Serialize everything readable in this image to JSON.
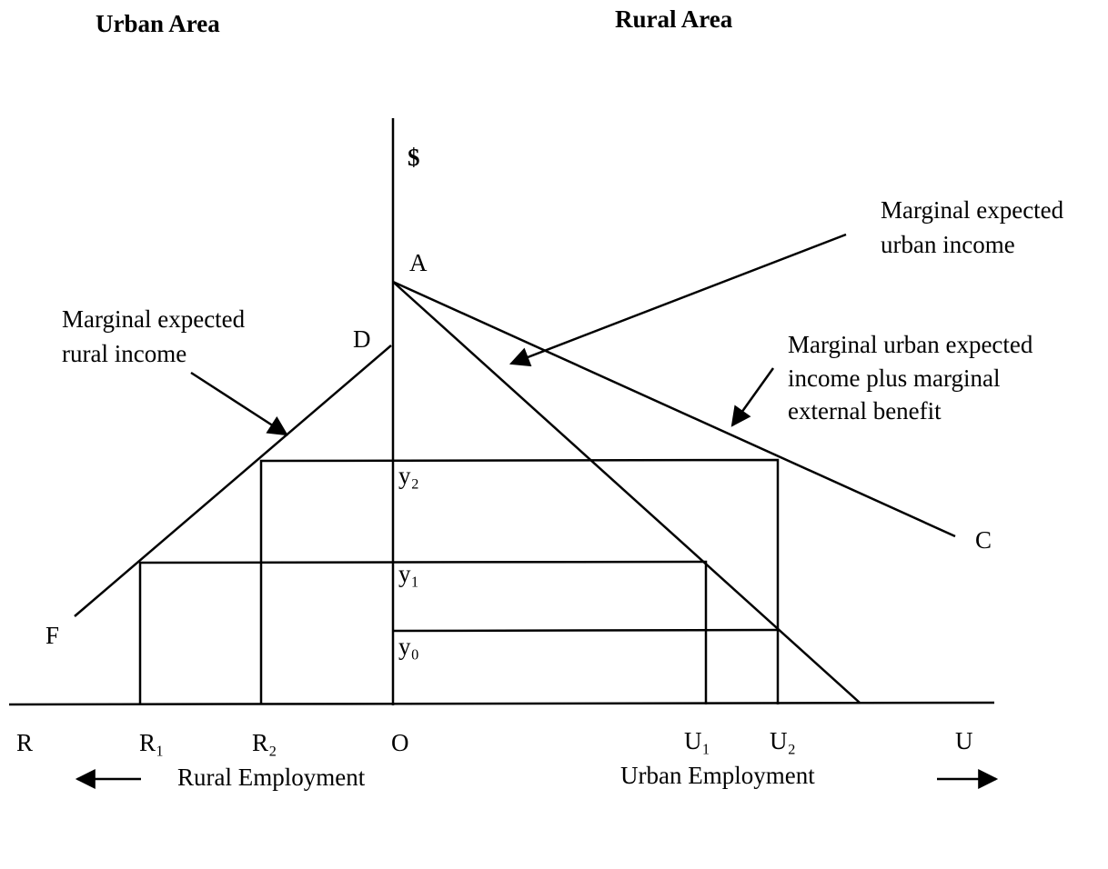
{
  "header": {
    "left": "Urban Area",
    "right": "Rural Area"
  },
  "axis": {
    "vertical": "$",
    "origin": "O",
    "left_end": "R",
    "right_end": "U",
    "x_marks": [
      "R₁",
      "R₂",
      "U₁",
      "U₂"
    ],
    "y_marks": [
      "y₂",
      "y₁",
      "y₀"
    ]
  },
  "points": {
    "A": "A",
    "D": "D",
    "C": "C",
    "F": "F"
  },
  "annotations": [
    {
      "lines": [
        "Marginal expected",
        "urban income"
      ]
    },
    {
      "lines": [
        "Marginal expected",
        "rural income"
      ]
    },
    {
      "lines": [
        "Marginal urban expected",
        "income plus marginal",
        "external benefit"
      ]
    }
  ],
  "footer": {
    "left": "Rural Employment",
    "right": "Urban Employment"
  }
}
